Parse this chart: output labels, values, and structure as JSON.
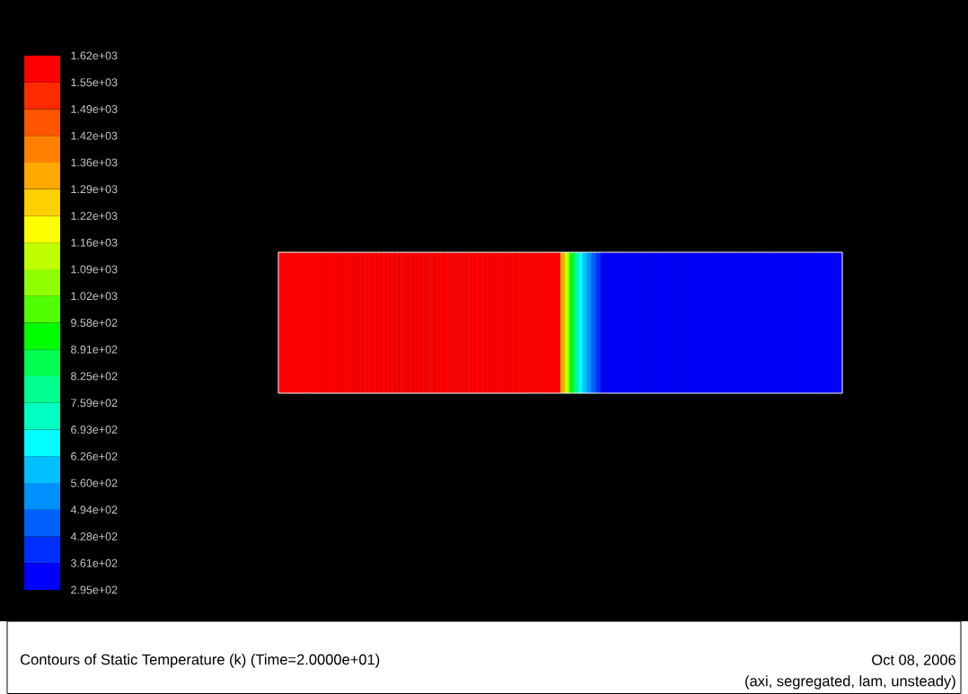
{
  "chart_data": {
    "type": "heatmap",
    "title": "Contours of Static Temperature (k)  (Time=2.0000e+01)",
    "annotations": [
      "Oct 08, 2006",
      "(axi, segregated, lam, unsteady)"
    ],
    "categories": [
      null,
      null,
      null,
      null,
      null,
      null,
      null,
      null,
      null,
      null,
      null,
      null,
      null,
      null,
      null,
      null,
      null,
      null,
      null,
      null,
      null,
      null,
      null,
      null,
      null,
      null,
      null,
      null,
      null,
      null,
      null,
      null,
      null,
      null,
      null,
      null,
      null,
      null,
      null,
      null,
      null,
      null,
      null,
      null,
      null,
      null,
      null,
      null,
      null,
      null,
      null,
      null,
      null,
      null,
      null,
      null,
      null,
      null,
      null,
      null,
      null,
      null,
      null,
      null,
      null,
      null,
      null,
      null,
      null,
      null,
      null,
      null,
      null,
      null,
      null,
      null,
      null,
      null,
      null,
      null,
      null,
      null,
      null,
      null,
      null,
      null,
      null,
      null,
      null,
      null,
      null,
      null,
      null,
      null,
      null,
      null,
      null,
      null,
      null,
      null,
      null,
      null,
      null,
      null,
      null,
      null,
      null,
      null,
      null,
      null,
      null,
      null,
      null,
      null,
      null,
      null,
      null,
      null,
      null,
      null,
      null,
      null,
      null,
      null,
      null,
      null
    ],
    "y_categories": [
      null
    ],
    "cells": [
      [
        1600,
        1600,
        1600,
        1600,
        1600,
        1600,
        1600,
        1600,
        1600,
        1600,
        1600,
        1600,
        1600,
        1600,
        1600,
        1600,
        1600,
        1600,
        1600,
        1600,
        1600,
        1600,
        1600,
        1600,
        1600,
        1600,
        1600,
        1600,
        1600,
        1600,
        1600,
        1600,
        1600,
        1600,
        1600,
        1600,
        1600,
        1600,
        1600,
        1600,
        1600,
        1600,
        1600,
        1600,
        1600,
        1600,
        1600,
        1600,
        1600,
        1600,
        1600,
        1600,
        1600,
        1600,
        1600,
        1600,
        1600,
        1600,
        1600,
        1600,
        1600,
        1600,
        1600,
        1300,
        1100,
        900,
        800,
        680,
        600,
        520,
        450,
        390,
        320,
        320,
        320,
        320,
        320,
        320,
        320,
        320,
        320,
        320,
        320,
        320,
        320,
        320,
        320,
        320,
        320,
        320,
        320,
        320,
        320,
        320,
        320,
        320,
        320,
        320,
        320,
        320,
        320,
        320,
        320,
        320,
        320,
        320,
        320,
        320,
        320,
        320,
        320,
        320,
        320,
        320,
        320,
        320,
        320,
        320,
        320,
        320,
        320,
        320,
        320,
        320,
        320,
        320
      ]
    ],
    "clim": [
      295,
      1620
    ],
    "cticks": [
      {
        "value": 295,
        "label": "2.95e+02"
      },
      {
        "value": 361.25,
        "label": "3.61e+02"
      },
      {
        "value": 427.5,
        "label": "4.28e+02"
      },
      {
        "value": 493.75,
        "label": "4.94e+02"
      },
      {
        "value": 560,
        "label": "5.60e+02"
      },
      {
        "value": 626.25,
        "label": "6.26e+02"
      },
      {
        "value": 692.5,
        "label": "6.93e+02"
      },
      {
        "value": 758.75,
        "label": "7.59e+02"
      },
      {
        "value": 825,
        "label": "8.25e+02"
      },
      {
        "value": 891.25,
        "label": "8.91e+02"
      },
      {
        "value": 957.5,
        "label": "9.58e+02"
      },
      {
        "value": 1023.75,
        "label": "1.02e+03"
      },
      {
        "value": 1090,
        "label": "1.09e+03"
      },
      {
        "value": 1156.25,
        "label": "1.16e+03"
      },
      {
        "value": 1222.5,
        "label": "1.22e+03"
      },
      {
        "value": 1288.75,
        "label": "1.29e+03"
      },
      {
        "value": 1355,
        "label": "1.36e+03"
      },
      {
        "value": 1421.25,
        "label": "1.42e+03"
      },
      {
        "value": 1487.5,
        "label": "1.49e+03"
      },
      {
        "value": 1553.75,
        "label": "1.55e+03"
      },
      {
        "value": 1620,
        "label": "1.62e+03"
      }
    ]
  }
}
